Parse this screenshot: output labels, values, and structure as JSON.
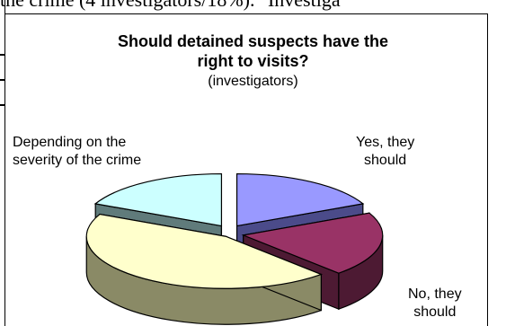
{
  "document": {
    "clipped_top_text": "the crime (4 investigators/18%). \"Investiga"
  },
  "chart_data": {
    "type": "pie",
    "title_line1": "Should detained suspects have the",
    "title_line2": "right to visits?",
    "subtitle": "(investigators)",
    "slices": [
      {
        "label": "Yes, they should",
        "value": 18,
        "color": "#9999ff",
        "side": "#4b4b8a"
      },
      {
        "label": "No, they should",
        "value": 20,
        "color": "#993366",
        "side": "#4d1a33"
      },
      {
        "label": "",
        "value": 44,
        "color": "#ffffcc",
        "side": "#8a8a66"
      },
      {
        "label": "Depending on the severity of the crime",
        "value": 18,
        "color": "#ccffff",
        "side": "#607b7b"
      }
    ],
    "labels": {
      "yes": "Yes, they\nshould",
      "no": "No, they\nshould",
      "depending": "Depending on the\nseverity of the crime"
    }
  }
}
